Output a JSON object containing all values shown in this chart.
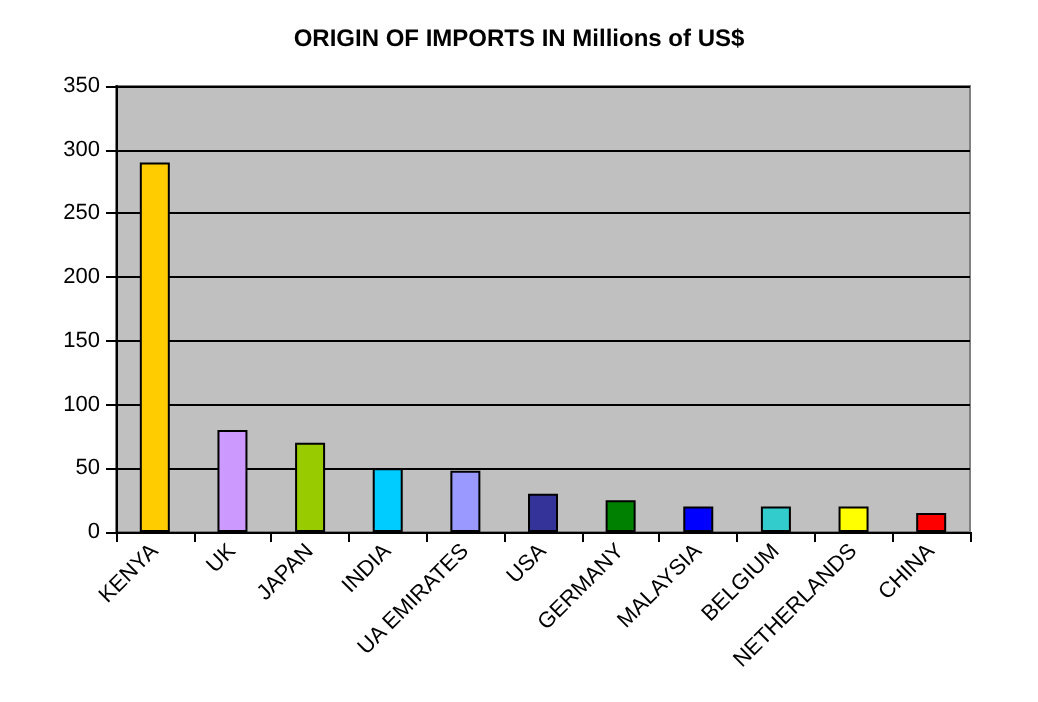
{
  "chart_data": {
    "type": "bar",
    "title": "ORIGIN OF IMPORTS IN Millions of US$",
    "categories": [
      "KENYA",
      "UK",
      "JAPAN",
      "INDIA",
      "UA EMIRATES",
      "USA",
      "GERMANY",
      "MALAYSIA",
      "BELGIUM",
      "NETHERLANDS",
      "CHINA"
    ],
    "values": [
      290,
      80,
      70,
      50,
      48,
      30,
      25,
      20,
      20,
      20,
      15
    ],
    "colors": [
      "#ffcc00",
      "#cc99ff",
      "#99cc00",
      "#00ccff",
      "#9999ff",
      "#333399",
      "#008000",
      "#0000ff",
      "#33cccc",
      "#ffff00",
      "#ff0000"
    ],
    "ylim": [
      0,
      350
    ],
    "yticks": [
      0,
      50,
      100,
      150,
      200,
      250,
      300,
      350
    ],
    "grid": "y"
  }
}
